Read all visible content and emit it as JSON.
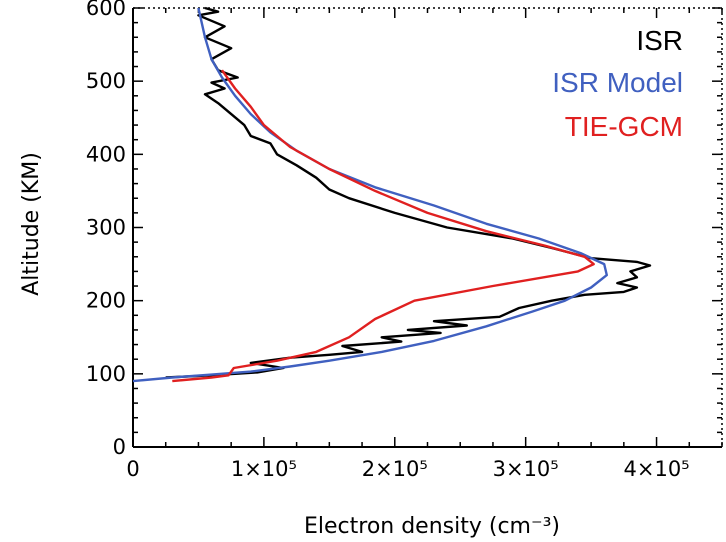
{
  "chart_data": {
    "type": "line",
    "xlabel": "Electron density (cm⁻³)",
    "ylabel": "Altitude (KM)",
    "xlim": [
      0,
      450000
    ],
    "ylim": [
      0,
      600
    ],
    "x_ticks": [
      0,
      100000,
      200000,
      300000,
      400000
    ],
    "x_tick_labels": [
      "0",
      "1×10⁵",
      "2×10⁵",
      "3×10⁵",
      "4×10⁵"
    ],
    "y_ticks": [
      0,
      100,
      200,
      300,
      400,
      500,
      600
    ],
    "y_tick_labels": [
      "0",
      "100",
      "200",
      "300",
      "400",
      "500",
      "600"
    ],
    "grid": false,
    "legend_position": "top-right",
    "series": [
      {
        "name": "ISR",
        "color": "#000000",
        "points": [
          [
            25000,
            95
          ],
          [
            60000,
            98
          ],
          [
            95000,
            102
          ],
          [
            115000,
            108
          ],
          [
            90000,
            115
          ],
          [
            120000,
            122
          ],
          [
            150000,
            126
          ],
          [
            175000,
            130
          ],
          [
            160000,
            138
          ],
          [
            205000,
            144
          ],
          [
            190000,
            150
          ],
          [
            235000,
            156
          ],
          [
            210000,
            160
          ],
          [
            255000,
            166
          ],
          [
            230000,
            172
          ],
          [
            280000,
            178
          ],
          [
            295000,
            190
          ],
          [
            320000,
            200
          ],
          [
            345000,
            208
          ],
          [
            375000,
            212
          ],
          [
            385000,
            218
          ],
          [
            370000,
            224
          ],
          [
            385000,
            232
          ],
          [
            380000,
            240
          ],
          [
            395000,
            248
          ],
          [
            385000,
            253
          ],
          [
            350000,
            258
          ],
          [
            320000,
            272
          ],
          [
            290000,
            285
          ],
          [
            240000,
            300
          ],
          [
            200000,
            320
          ],
          [
            165000,
            340
          ],
          [
            150000,
            352
          ],
          [
            140000,
            368
          ],
          [
            125000,
            385
          ],
          [
            110000,
            400
          ],
          [
            105000,
            415
          ],
          [
            90000,
            425
          ],
          [
            85000,
            440
          ],
          [
            75000,
            455
          ],
          [
            65000,
            470
          ],
          [
            55000,
            482
          ],
          [
            70000,
            490
          ],
          [
            60000,
            498
          ],
          [
            80000,
            505
          ],
          [
            65000,
            515
          ],
          [
            60000,
            530
          ],
          [
            75000,
            545
          ],
          [
            55000,
            560
          ],
          [
            70000,
            575
          ],
          [
            50000,
            590
          ],
          [
            65000,
            595
          ],
          [
            55000,
            600
          ]
        ]
      },
      {
        "name": "ISR Model",
        "color": "#4060c0",
        "points": [
          [
            0,
            90
          ],
          [
            30000,
            95
          ],
          [
            60000,
            99
          ],
          [
            90000,
            103
          ],
          [
            120000,
            110
          ],
          [
            150000,
            118
          ],
          [
            190000,
            130
          ],
          [
            230000,
            145
          ],
          [
            270000,
            165
          ],
          [
            305000,
            185
          ],
          [
            330000,
            200
          ],
          [
            350000,
            218
          ],
          [
            362000,
            235
          ],
          [
            360000,
            250
          ],
          [
            342000,
            265
          ],
          [
            310000,
            285
          ],
          [
            270000,
            305
          ],
          [
            230000,
            330
          ],
          [
            185000,
            355
          ],
          [
            150000,
            380
          ],
          [
            125000,
            405
          ],
          [
            105000,
            430
          ],
          [
            90000,
            455
          ],
          [
            78000,
            480
          ],
          [
            68000,
            505
          ],
          [
            60000,
            530
          ],
          [
            55000,
            560
          ],
          [
            50000,
            600
          ]
        ]
      },
      {
        "name": "TIE-GCM",
        "color": "#e02020",
        "points": [
          [
            30000,
            90
          ],
          [
            60000,
            95
          ],
          [
            73000,
            98
          ],
          [
            75000,
            103
          ],
          [
            77000,
            108
          ],
          [
            110000,
            118
          ],
          [
            140000,
            130
          ],
          [
            165000,
            150
          ],
          [
            185000,
            175
          ],
          [
            215000,
            200
          ],
          [
            275000,
            220
          ],
          [
            340000,
            240
          ],
          [
            352000,
            250
          ],
          [
            345000,
            260
          ],
          [
            315000,
            275
          ],
          [
            270000,
            295
          ],
          [
            225000,
            320
          ],
          [
            185000,
            350
          ],
          [
            150000,
            380
          ],
          [
            120000,
            410
          ],
          [
            100000,
            440
          ],
          [
            90000,
            465
          ],
          [
            78000,
            490
          ],
          [
            68000,
            515
          ]
        ]
      }
    ]
  }
}
